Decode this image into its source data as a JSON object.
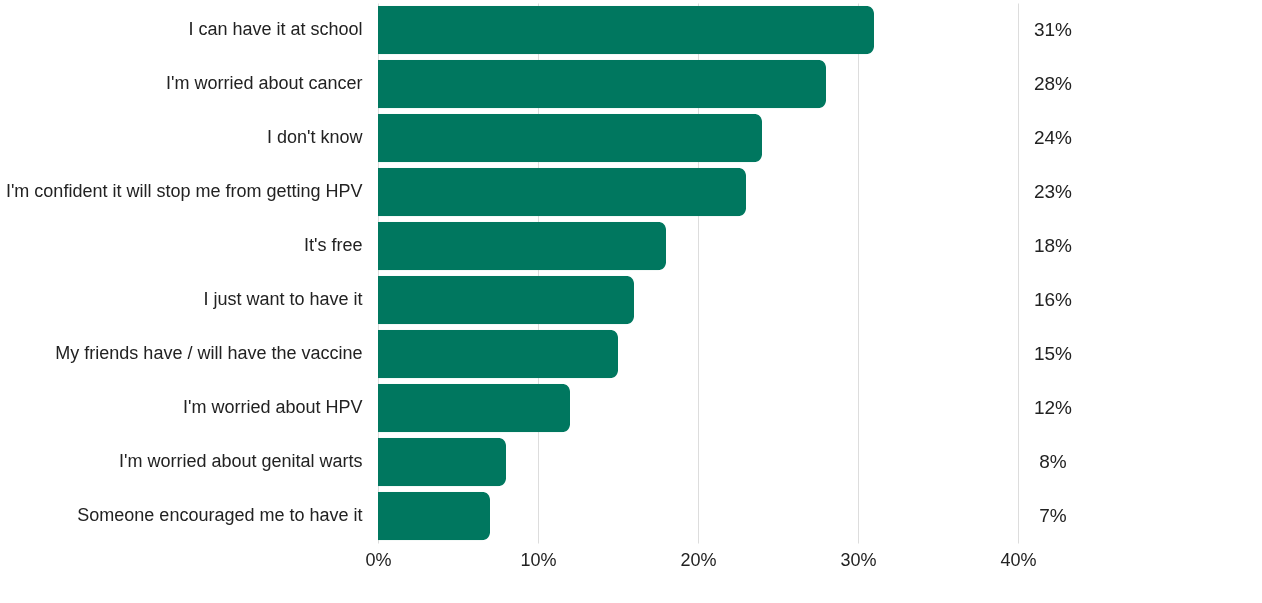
{
  "chart_data": {
    "type": "bar",
    "orientation": "horizontal",
    "categories": [
      "I can have it at school",
      "I'm worried about cancer",
      "I don't know",
      "I'm confident it will stop me from getting HPV",
      "It's free",
      "I just want to have it",
      "My friends have / will have the vaccine",
      "I'm worried about HPV",
      "I'm worried about genital warts",
      "Someone encouraged me to have it"
    ],
    "values": [
      31,
      28,
      24,
      23,
      18,
      16,
      15,
      12,
      8,
      7
    ],
    "value_labels": [
      "31%",
      "28%",
      "24%",
      "23%",
      "18%",
      "16%",
      "15%",
      "12%",
      "8%",
      "7%"
    ],
    "color": "#00775f",
    "xlim": [
      0,
      40
    ],
    "xticks": [
      {
        "value": 0,
        "label": "0%"
      },
      {
        "value": 10,
        "label": "10%"
      },
      {
        "value": 20,
        "label": "20%"
      },
      {
        "value": 30,
        "label": "30%"
      },
      {
        "value": 40,
        "label": "40%"
      }
    ],
    "grid": "x"
  }
}
